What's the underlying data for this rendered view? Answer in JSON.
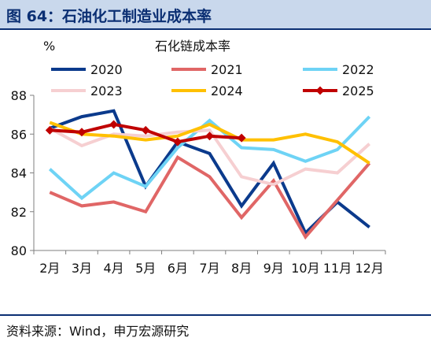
{
  "figure": {
    "title": "图 64：石油化工制造业成本率",
    "source": "资料来源：Wind，申万宏源研究"
  },
  "chart_data": {
    "type": "line",
    "title": "石化链成本率",
    "ylabel": "%",
    "xlabel": "",
    "categories": [
      "2月",
      "3月",
      "4月",
      "5月",
      "6月",
      "7月",
      "8月",
      "9月",
      "10月",
      "11月",
      "12月"
    ],
    "ylim": [
      80,
      88
    ],
    "yticks": [
      80,
      82,
      84,
      86,
      88
    ],
    "grid": false,
    "legend_position": "top",
    "series": [
      {
        "name": "2020",
        "color": "#0b3a8c",
        "marker": false,
        "values": [
          86.3,
          86.9,
          87.2,
          83.3,
          85.6,
          85.0,
          82.3,
          84.5,
          80.9,
          82.5,
          81.2
        ]
      },
      {
        "name": "2021",
        "color": "#e06666",
        "marker": false,
        "values": [
          83.0,
          82.3,
          82.5,
          82.0,
          84.8,
          83.8,
          81.7,
          83.6,
          80.7,
          82.6,
          84.5
        ]
      },
      {
        "name": "2022",
        "color": "#6ed3f5",
        "marker": false,
        "values": [
          84.2,
          82.7,
          84.0,
          83.3,
          85.3,
          86.7,
          85.3,
          85.2,
          84.6,
          85.2,
          86.9
        ]
      },
      {
        "name": "2023",
        "color": "#f6cfd1",
        "marker": false,
        "values": [
          86.3,
          85.4,
          86.0,
          85.9,
          86.1,
          86.2,
          83.8,
          83.4,
          84.2,
          84.0,
          85.5
        ]
      },
      {
        "name": "2024",
        "color": "#ffc000",
        "marker": false,
        "values": [
          86.6,
          86.0,
          85.9,
          85.7,
          85.9,
          86.5,
          85.7,
          85.7,
          86.0,
          85.6,
          84.5
        ]
      },
      {
        "name": "2025",
        "color": "#c00000",
        "marker": true,
        "values": [
          86.2,
          86.1,
          86.5,
          86.2,
          85.6,
          85.9,
          85.8,
          null,
          null,
          null,
          null
        ]
      }
    ]
  }
}
